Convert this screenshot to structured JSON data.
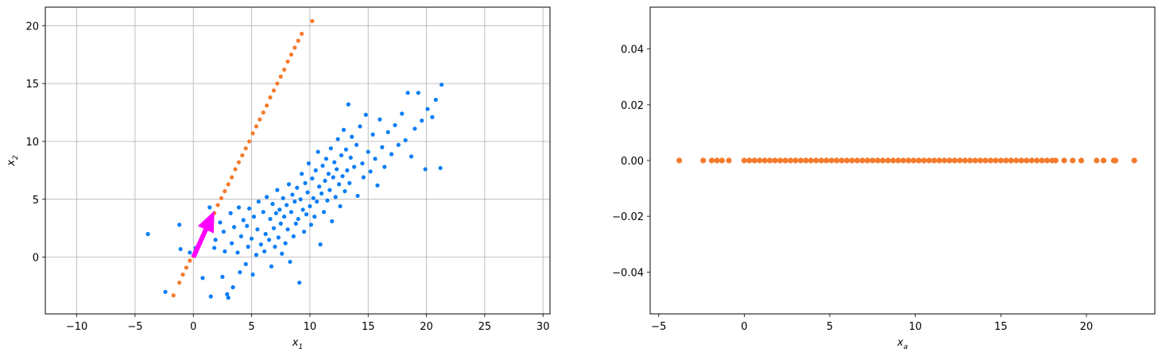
{
  "chart_data": [
    {
      "type": "scatter",
      "xlabel": "x",
      "xlabel_sub": "1",
      "ylabel": "x",
      "ylabel_sub": "2",
      "xlim": [
        -12.7,
        30.6
      ],
      "ylim": [
        -4.9,
        21.6
      ],
      "xticks": [
        -10,
        -5,
        0,
        5,
        10,
        15,
        20,
        25,
        30
      ],
      "yticks": [
        0,
        5,
        10,
        15,
        20
      ],
      "grid": true,
      "colors": {
        "data": "#0a7ef5",
        "projection": "#f47b2c",
        "vector": "#ff00ff"
      },
      "series": [
        {
          "points": [
            [
              -3.9,
              2.0
            ],
            [
              -2.4,
              -3.0
            ],
            [
              -1.2,
              2.8
            ],
            [
              -1.1,
              0.7
            ],
            [
              -0.3,
              0.4
            ],
            [
              0.2,
              0.8
            ],
            [
              0.8,
              -1.8
            ],
            [
              1.4,
              4.3
            ],
            [
              1.5,
              -3.4
            ],
            [
              1.8,
              0.8
            ],
            [
              1.9,
              1.5
            ],
            [
              2.3,
              3.0
            ],
            [
              2.5,
              -1.7
            ],
            [
              2.6,
              2.2
            ],
            [
              2.7,
              0.5
            ],
            [
              2.9,
              -3.2
            ],
            [
              3.0,
              -3.5
            ],
            [
              3.2,
              3.8
            ],
            [
              3.3,
              1.2
            ],
            [
              3.4,
              -2.6
            ],
            [
              3.5,
              2.6
            ],
            [
              3.8,
              0.4
            ],
            [
              3.9,
              4.3
            ],
            [
              4.0,
              -1.3
            ],
            [
              4.1,
              1.8
            ],
            [
              4.3,
              3.2
            ],
            [
              4.5,
              -0.6
            ],
            [
              4.6,
              2.7
            ],
            [
              4.7,
              0.9
            ],
            [
              4.8,
              4.2
            ],
            [
              5.0,
              1.6
            ],
            [
              5.1,
              -1.5
            ],
            [
              5.2,
              3.5
            ],
            [
              5.4,
              0.2
            ],
            [
              5.5,
              2.4
            ],
            [
              5.6,
              4.8
            ],
            [
              5.8,
              1.1
            ],
            [
              6.0,
              3.9
            ],
            [
              6.1,
              0.5
            ],
            [
              6.2,
              2.0
            ],
            [
              6.3,
              5.2
            ],
            [
              6.5,
              1.5
            ],
            [
              6.6,
              3.3
            ],
            [
              6.7,
              -0.8
            ],
            [
              6.8,
              4.6
            ],
            [
              6.9,
              2.5
            ],
            [
              7.0,
              0.9
            ],
            [
              7.1,
              3.8
            ],
            [
              7.2,
              5.8
            ],
            [
              7.3,
              1.7
            ],
            [
              7.4,
              4.1
            ],
            [
              7.5,
              2.9
            ],
            [
              7.6,
              0.3
            ],
            [
              7.7,
              5.1
            ],
            [
              7.8,
              3.5
            ],
            [
              7.9,
              1.2
            ],
            [
              8.0,
              4.5
            ],
            [
              8.1,
              2.4
            ],
            [
              8.2,
              6.3
            ],
            [
              8.3,
              -0.4
            ],
            [
              8.4,
              3.9
            ],
            [
              8.5,
              5.4
            ],
            [
              8.6,
              1.8
            ],
            [
              8.7,
              4.8
            ],
            [
              8.8,
              2.9
            ],
            [
              8.9,
              6.0
            ],
            [
              9.0,
              3.3
            ],
            [
              9.1,
              -2.2
            ],
            [
              9.2,
              5.0
            ],
            [
              9.3,
              7.2
            ],
            [
              9.4,
              4.1
            ],
            [
              9.5,
              2.2
            ],
            [
              9.6,
              6.4
            ],
            [
              9.7,
              3.7
            ],
            [
              9.8,
              5.6
            ],
            [
              9.9,
              8.1
            ],
            [
              10.0,
              4.4
            ],
            [
              10.1,
              2.8
            ],
            [
              10.2,
              6.8
            ],
            [
              10.3,
              5.1
            ],
            [
              10.4,
              3.5
            ],
            [
              10.5,
              7.5
            ],
            [
              10.6,
              4.8
            ],
            [
              10.7,
              9.1
            ],
            [
              10.8,
              6.1
            ],
            [
              10.9,
              1.1
            ],
            [
              11.0,
              5.5
            ],
            [
              11.1,
              7.9
            ],
            [
              11.2,
              3.9
            ],
            [
              11.3,
              6.6
            ],
            [
              11.4,
              8.5
            ],
            [
              11.5,
              4.9
            ],
            [
              11.6,
              7.2
            ],
            [
              11.7,
              5.8
            ],
            [
              11.8,
              9.4
            ],
            [
              11.9,
              3.1
            ],
            [
              12.0,
              6.9
            ],
            [
              12.1,
              8.2
            ],
            [
              12.2,
              5.2
            ],
            [
              12.3,
              7.6
            ],
            [
              12.4,
              10.2
            ],
            [
              12.5,
              6.3
            ],
            [
              12.6,
              4.4
            ],
            [
              12.7,
              8.8
            ],
            [
              12.8,
              7.0
            ],
            [
              12.9,
              11.0
            ],
            [
              13.0,
              5.7
            ],
            [
              13.1,
              9.3
            ],
            [
              13.2,
              7.5
            ],
            [
              13.3,
              13.2
            ],
            [
              13.4,
              6.4
            ],
            [
              13.5,
              8.6
            ],
            [
              13.6,
              10.4
            ],
            [
              13.8,
              7.8
            ],
            [
              14.0,
              9.7
            ],
            [
              14.1,
              5.3
            ],
            [
              14.3,
              11.3
            ],
            [
              14.5,
              8.1
            ],
            [
              14.6,
              6.9
            ],
            [
              14.8,
              12.3
            ],
            [
              15.0,
              9.1
            ],
            [
              15.2,
              7.4
            ],
            [
              15.4,
              10.6
            ],
            [
              15.6,
              8.5
            ],
            [
              15.8,
              6.2
            ],
            [
              16.0,
              11.9
            ],
            [
              16.2,
              9.5
            ],
            [
              16.4,
              7.8
            ],
            [
              16.7,
              10.8
            ],
            [
              17.0,
              8.9
            ],
            [
              17.3,
              11.4
            ],
            [
              17.6,
              9.7
            ],
            [
              17.9,
              12.4
            ],
            [
              18.2,
              10.1
            ],
            [
              18.4,
              14.2
            ],
            [
              18.7,
              8.7
            ],
            [
              19.0,
              11.1
            ],
            [
              19.3,
              14.2
            ],
            [
              19.6,
              11.8
            ],
            [
              19.9,
              7.6
            ],
            [
              20.1,
              12.8
            ],
            [
              20.5,
              12.1
            ],
            [
              20.8,
              13.6
            ],
            [
              21.2,
              7.7
            ],
            [
              21.3,
              14.9
            ]
          ]
        },
        {
          "points": [
            [
              -1.7,
              -3.3
            ],
            [
              -1.2,
              -2.2
            ],
            [
              -0.9,
              -1.5
            ],
            [
              -0.6,
              -0.9
            ],
            [
              -0.3,
              -0.3
            ],
            [
              0.0,
              0.1
            ],
            [
              0.3,
              0.8
            ],
            [
              0.6,
              1.4
            ],
            [
              0.9,
              2.0
            ],
            [
              1.2,
              2.6
            ],
            [
              1.5,
              3.2
            ],
            [
              1.8,
              3.8
            ],
            [
              2.1,
              4.5
            ],
            [
              2.4,
              5.1
            ],
            [
              2.7,
              5.7
            ],
            [
              3.0,
              6.3
            ],
            [
              3.3,
              6.9
            ],
            [
              3.6,
              7.6
            ],
            [
              3.9,
              8.2
            ],
            [
              4.2,
              8.8
            ],
            [
              4.5,
              9.4
            ],
            [
              4.8,
              10.0
            ],
            [
              5.1,
              10.7
            ],
            [
              5.4,
              11.3
            ],
            [
              5.7,
              11.9
            ],
            [
              6.0,
              12.5
            ],
            [
              6.3,
              13.1
            ],
            [
              6.6,
              13.8
            ],
            [
              6.9,
              14.4
            ],
            [
              7.2,
              15.0
            ],
            [
              7.5,
              15.6
            ],
            [
              7.8,
              16.2
            ],
            [
              8.1,
              16.9
            ],
            [
              8.4,
              17.5
            ],
            [
              8.7,
              18.1
            ],
            [
              9.0,
              18.7
            ],
            [
              9.3,
              19.3
            ],
            [
              10.2,
              20.4
            ]
          ]
        }
      ],
      "arrow": {
        "from": [
          0,
          0
        ],
        "to": [
          1.8,
          4.0
        ]
      }
    },
    {
      "type": "scatter",
      "xlabel": "x",
      "xlabel_sub": "a",
      "ylabel": "",
      "xlim": [
        -5.5,
        24.0
      ],
      "ylim": [
        -0.055,
        0.055
      ],
      "xticks": [
        -5,
        0,
        5,
        10,
        15,
        20
      ],
      "yticks": [
        -0.04,
        -0.02,
        0.0,
        0.02,
        0.04
      ],
      "ytick_labels": [
        "−0.04",
        "−0.02",
        "0.00",
        "0.02",
        "0.04"
      ],
      "xtick_labels": [
        "−5",
        "0",
        "5",
        "10",
        "15",
        "20"
      ],
      "grid": false,
      "colors": {
        "points": "#f47b2c"
      },
      "series": [
        {
          "x": [
            -3.8,
            -2.4,
            -1.9,
            -1.6,
            -1.3,
            -0.9,
            0.0,
            0.3,
            0.6,
            0.9,
            1.2,
            1.5,
            1.8,
            2.1,
            2.4,
            2.7,
            3.0,
            3.3,
            3.6,
            3.9,
            4.2,
            4.5,
            4.8,
            5.1,
            5.4,
            5.7,
            6.0,
            6.3,
            6.6,
            6.9,
            7.2,
            7.5,
            7.8,
            8.1,
            8.4,
            8.7,
            9.0,
            9.3,
            9.6,
            9.9,
            10.2,
            10.5,
            10.8,
            11.1,
            11.4,
            11.7,
            12.0,
            12.3,
            12.6,
            12.9,
            13.2,
            13.5,
            13.8,
            14.1,
            14.4,
            14.7,
            15.0,
            15.3,
            15.6,
            15.9,
            16.2,
            16.5,
            16.8,
            17.1,
            17.4,
            17.7,
            18.0,
            18.2,
            18.7,
            19.2,
            19.7,
            20.6,
            21.0,
            21.6,
            21.7,
            22.8
          ],
          "y": 0
        }
      ]
    }
  ],
  "plot1": {
    "xticks": [
      "−10",
      "−5",
      "0",
      "5",
      "10",
      "15",
      "20",
      "25",
      "30"
    ],
    "yticks": [
      "0",
      "5",
      "10",
      "15",
      "20"
    ]
  }
}
